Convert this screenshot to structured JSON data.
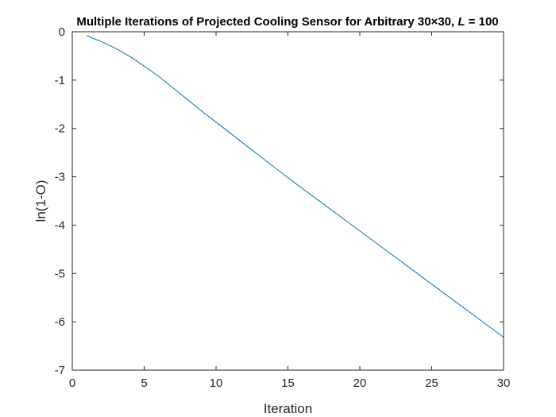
{
  "chart_data": {
    "type": "line",
    "title_parts": {
      "prefix": "Multiple Iterations of Projected Cooling Sensor for Arbitrary 30",
      "times": "×",
      "mid": "30, ",
      "var": "L",
      "suffix": " = 100"
    },
    "xlabel": "Iteration",
    "ylabel": "ln(1-O)",
    "xlim": [
      0,
      30
    ],
    "ylim": [
      -7,
      0
    ],
    "xticks": [
      0,
      5,
      10,
      15,
      20,
      25,
      30
    ],
    "xtick_labels": [
      "0",
      "5",
      "10",
      "15",
      "20",
      "25",
      "30"
    ],
    "yticks": [
      0,
      -1,
      -2,
      -3,
      -4,
      -5,
      -6,
      -7
    ],
    "ytick_labels": [
      "0",
      "-1",
      "-2",
      "-3",
      "-4",
      "-5",
      "-6",
      "-7"
    ],
    "grid": false,
    "legend": "none",
    "series": [
      {
        "color": "#0072BD",
        "x": [
          1,
          2,
          3,
          4,
          5,
          6,
          7,
          8,
          9,
          10,
          11,
          12,
          13,
          14,
          15,
          16,
          17,
          18,
          19,
          20,
          21,
          22,
          23,
          24,
          25,
          26,
          27,
          28,
          29,
          30
        ],
        "y": [
          -0.08,
          -0.2,
          -0.34,
          -0.51,
          -0.71,
          -0.92,
          -1.16,
          -1.4,
          -1.64,
          -1.87,
          -2.1,
          -2.33,
          -2.56,
          -2.79,
          -3.02,
          -3.24,
          -3.46,
          -3.68,
          -3.9,
          -4.12,
          -4.34,
          -4.56,
          -4.78,
          -5.0,
          -5.22,
          -5.44,
          -5.66,
          -5.88,
          -6.1,
          -6.32
        ]
      }
    ]
  }
}
